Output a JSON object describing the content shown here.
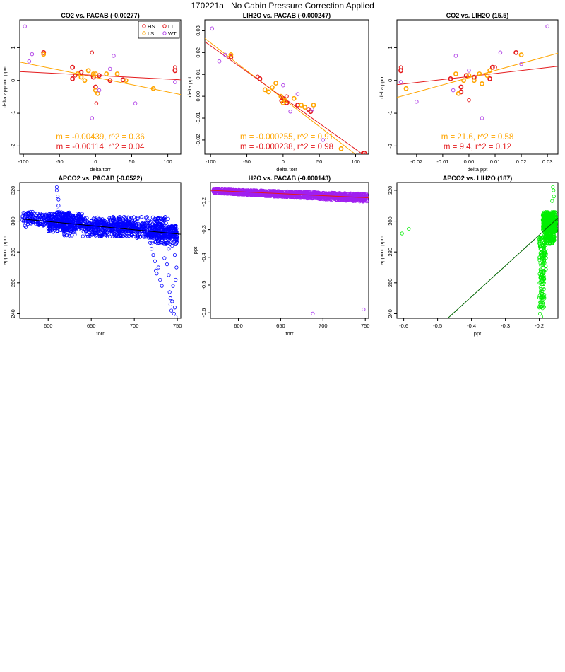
{
  "page": {
    "title": "170221a   No Cabin Pressure Correction Applied"
  },
  "colors": {
    "HS": "#e41a1c",
    "LS": "#ffa500",
    "LT": "#e41a1c",
    "WT": "#b44be8",
    "blue": "#0000ff",
    "purple": "#a020f0",
    "green": "#00ee00",
    "darkgreen": "#006400"
  },
  "chart_data": [
    {
      "id": "p1",
      "type": "scatter",
      "title": "CO2 vs. PACAB (-0.00277)",
      "xlabel": "delta torr",
      "ylabel": "delta approx. ppm",
      "xlim": [
        -105,
        118
      ],
      "ylim": [
        -2.25,
        1.85
      ],
      "xticks": [
        -100,
        -50,
        0,
        50,
        100
      ],
      "yticks": [
        -2,
        -1,
        0,
        1
      ],
      "legend": {
        "placement": "top-right",
        "entries": [
          {
            "label": "HS",
            "color": "#e41a1c"
          },
          {
            "label": "LT",
            "color": "#e41a1c"
          },
          {
            "label": "LS",
            "color": "#ffa500"
          },
          {
            "label": "WT",
            "color": "#b44be8"
          }
        ]
      },
      "annotations": [
        {
          "text": "m = -0.00439, r^2 = 0.36",
          "color": "#ffa500"
        },
        {
          "text": "m = -0.00114, r^2 = 0.04",
          "color": "#e41a1c"
        }
      ],
      "lines": [
        {
          "color": "#ffa500",
          "x": [
            -105,
            118
          ],
          "y": [
            0.56,
            -0.43
          ]
        },
        {
          "color": "#e41a1c",
          "x": [
            -105,
            118
          ],
          "y": [
            0.27,
            0.02
          ]
        }
      ],
      "series": [
        {
          "name": "HS",
          "color": "#e41a1c",
          "lw": 1.6,
          "r": 2.6,
          "points": [
            [
              -72,
              0.85
            ],
            [
              -32,
              0.4
            ],
            [
              -32,
              0.05
            ],
            [
              -20,
              0.25
            ],
            [
              0,
              -0.2
            ],
            [
              5,
              0.15
            ],
            [
              -3,
              0.1
            ],
            [
              20,
              0.0
            ],
            [
              38,
              0.02
            ],
            [
              110,
              0.3
            ]
          ]
        },
        {
          "name": "LS",
          "color": "#ffa500",
          "lw": 1.6,
          "r": 2.6,
          "points": [
            [
              -72,
              0.8
            ],
            [
              -25,
              0.2
            ],
            [
              -10,
              0.3
            ],
            [
              -3,
              0.2
            ],
            [
              0,
              -0.3
            ],
            [
              0,
              0.2
            ],
            [
              3,
              -0.4
            ],
            [
              15,
              0.2
            ],
            [
              -15,
              0.0
            ],
            [
              30,
              0.2
            ],
            [
              42,
              0.0
            ],
            [
              80,
              -0.25
            ],
            [
              -20,
              0.1
            ]
          ]
        },
        {
          "name": "LT",
          "color": "#e41a1c",
          "lw": 1.0,
          "r": 2.3,
          "points": [
            [
              -5,
              0.85
            ],
            [
              1,
              -0.7
            ],
            [
              110,
              0.4
            ],
            [
              -28,
              0.15
            ]
          ]
        },
        {
          "name": "WT",
          "color": "#b44be8",
          "lw": 1.0,
          "r": 2.3,
          "points": [
            [
              -98,
              1.65
            ],
            [
              -88,
              0.8
            ],
            [
              -92,
              0.58
            ],
            [
              -5,
              -1.15
            ],
            [
              55,
              -0.7
            ],
            [
              20,
              0.35
            ],
            [
              110,
              -0.05
            ],
            [
              25,
              0.75
            ],
            [
              5,
              -0.3
            ]
          ]
        }
      ]
    },
    {
      "id": "p2",
      "type": "scatter",
      "title": "LIH2O vs. PACAB (-0.000247)",
      "xlabel": "delta torr",
      "ylabel": "delta ppt",
      "xlim": [
        -108,
        118
      ],
      "ylim": [
        -0.0265,
        0.035
      ],
      "xticks": [
        -100,
        -50,
        0,
        50,
        100
      ],
      "yticks": [
        -0.02,
        -0.01,
        0.0,
        0.01,
        0.02,
        0.03
      ],
      "annotations": [
        {
          "text": "m = -0.000255, r^2 = 0.91",
          "color": "#ffa500"
        },
        {
          "text": "m = -0.000238, r^2 = 0.98",
          "color": "#e41a1c"
        }
      ],
      "lines": [
        {
          "color": "#ffa500",
          "x": [
            -108,
            118
          ],
          "y": [
            0.0265,
            -0.0312
          ]
        },
        {
          "color": "#e41a1c",
          "x": [
            -108,
            118
          ],
          "y": [
            0.025,
            -0.0285
          ]
        }
      ],
      "series": [
        {
          "name": "HS",
          "color": "#e41a1c",
          "lw": 1.6,
          "r": 2.6,
          "points": [
            [
              -72,
              0.018
            ],
            [
              -32,
              0.008
            ],
            [
              -2,
              -0.002
            ],
            [
              0,
              -0.001
            ],
            [
              5,
              -0.003
            ],
            [
              20,
              -0.004
            ],
            [
              38,
              -0.007
            ],
            [
              112,
              -0.026
            ],
            [
              35,
              -0.006
            ]
          ]
        },
        {
          "name": "LS",
          "color": "#ffa500",
          "lw": 1.6,
          "r": 2.6,
          "points": [
            [
              -72,
              0.019
            ],
            [
              -25,
              0.003
            ],
            [
              -20,
              0.002
            ],
            [
              -10,
              0.006
            ],
            [
              -3,
              0.0
            ],
            [
              0,
              -0.003
            ],
            [
              3,
              -0.002
            ],
            [
              15,
              -0.001
            ],
            [
              25,
              -0.004
            ],
            [
              30,
              -0.005
            ],
            [
              42,
              -0.004
            ],
            [
              80,
              -0.024
            ],
            [
              -15,
              0.004
            ]
          ]
        },
        {
          "name": "LT",
          "color": "#e41a1c",
          "lw": 1.0,
          "r": 2.3,
          "points": [
            [
              -35,
              0.009
            ],
            [
              110,
              -0.026
            ],
            [
              5,
              0.0
            ]
          ]
        },
        {
          "name": "WT",
          "color": "#b44be8",
          "lw": 1.0,
          "r": 2.3,
          "points": [
            [
              -98,
              0.031
            ],
            [
              -88,
              0.016
            ],
            [
              -80,
              0.019
            ],
            [
              10,
              -0.007
            ],
            [
              55,
              -0.02
            ],
            [
              20,
              0.001
            ],
            [
              40,
              -0.006
            ],
            [
              0,
              0.005
            ]
          ]
        }
      ]
    },
    {
      "id": "p3",
      "type": "scatter",
      "title": "CO2 vs. LIH2O (15.5)",
      "xlabel": "delta ppt",
      "ylabel": "delta ppm",
      "xlim": [
        -0.0275,
        0.034
      ],
      "ylim": [
        -2.25,
        1.85
      ],
      "xticks": [
        -0.02,
        -0.01,
        0.0,
        0.01,
        0.02,
        0.03
      ],
      "yticks": [
        -2,
        -1,
        0,
        1
      ],
      "annotations": [
        {
          "text": "m = 21.6, r^2 = 0.58",
          "color": "#ffa500"
        },
        {
          "text": "m = 9.4, r^2 = 0.12",
          "color": "#e41a1c"
        }
      ],
      "lines": [
        {
          "color": "#ffa500",
          "x": [
            -0.0275,
            0.034
          ],
          "y": [
            -0.52,
            0.83
          ]
        },
        {
          "color": "#e41a1c",
          "x": [
            -0.0275,
            0.034
          ],
          "y": [
            -0.13,
            0.43
          ]
        }
      ],
      "series": [
        {
          "name": "HS",
          "color": "#e41a1c",
          "lw": 1.6,
          "r": 2.6,
          "points": [
            [
              -0.026,
              0.3
            ],
            [
              -0.007,
              0.05
            ],
            [
              -0.003,
              -0.2
            ],
            [
              -0.001,
              0.15
            ],
            [
              0.002,
              0.1
            ],
            [
              0.008,
              0.05
            ],
            [
              0.009,
              0.4
            ],
            [
              0.018,
              0.85
            ],
            [
              -0.003,
              -0.35
            ]
          ]
        },
        {
          "name": "LS",
          "color": "#ffa500",
          "lw": 1.6,
          "r": 2.6,
          "points": [
            [
              -0.024,
              -0.25
            ],
            [
              -0.004,
              -0.4
            ],
            [
              -0.002,
              0.0
            ],
            [
              0.0,
              0.15
            ],
            [
              0.004,
              0.2
            ],
            [
              0.005,
              -0.1
            ],
            [
              0.007,
              0.15
            ],
            [
              0.008,
              0.3
            ],
            [
              0.02,
              0.78
            ],
            [
              -0.005,
              0.2
            ],
            [
              0.002,
              0.0
            ]
          ]
        },
        {
          "name": "LT",
          "color": "#e41a1c",
          "lw": 1.0,
          "r": 2.3,
          "points": [
            [
              -0.026,
              0.4
            ],
            [
              0.0,
              -0.6
            ],
            [
              0.01,
              0.4
            ]
          ]
        },
        {
          "name": "WT",
          "color": "#b44be8",
          "lw": 1.0,
          "r": 2.3,
          "points": [
            [
              -0.026,
              -0.05
            ],
            [
              -0.02,
              -0.65
            ],
            [
              0.03,
              1.65
            ],
            [
              0.005,
              -1.15
            ],
            [
              -0.005,
              0.75
            ],
            [
              0.012,
              0.85
            ],
            [
              0.02,
              0.5
            ],
            [
              -0.006,
              -0.3
            ],
            [
              0.0,
              0.3
            ]
          ]
        }
      ]
    },
    {
      "id": "p4",
      "type": "scatter",
      "title": "APCO2 vs. PACAB (-0.0522)",
      "xlabel": "torr",
      "ylabel": "approx. ppm",
      "xlim": [
        567,
        754
      ],
      "ylim": [
        237,
        325
      ],
      "xticks": [
        600,
        650,
        700,
        750
      ],
      "yticks": [
        240,
        260,
        280,
        300,
        320
      ],
      "series_color": "#0000ff",
      "line_color": "#000000",
      "lines": [
        {
          "color": "#000000",
          "x": [
            567,
            754
          ],
          "y": [
            301.5,
            291.5
          ]
        }
      ],
      "clusters": [
        {
          "x": [
            570,
            585
          ],
          "y": [
            298,
            306
          ],
          "n": 60
        },
        {
          "x": [
            585,
            640
          ],
          "y": [
            297,
            305
          ],
          "n": 260
        },
        {
          "x": [
            600,
            740
          ],
          "y": [
            296,
            303
          ],
          "n": 320
        },
        {
          "x": [
            640,
            700
          ],
          "y": [
            290,
            300
          ],
          "n": 240
        },
        {
          "x": [
            600,
            700
          ],
          "y": [
            293,
            298
          ],
          "n": 200
        },
        {
          "x": [
            700,
            750
          ],
          "y": [
            289,
            297
          ],
          "n": 260
        },
        {
          "x": [
            608,
            625
          ],
          "y": [
            300,
            306
          ],
          "n": 40
        },
        {
          "x": [
            718,
            750
          ],
          "y": [
            285,
            295
          ],
          "n": 120
        },
        {
          "x": [
            618,
            632
          ],
          "y": [
            290,
            296
          ],
          "n": 30
        }
      ],
      "outliers": [
        [
          610,
          322
        ],
        [
          610,
          320
        ],
        [
          611,
          316
        ],
        [
          612,
          314
        ],
        [
          612,
          310
        ],
        [
          611,
          307
        ],
        [
          573,
          297
        ],
        [
          574,
          296
        ],
        [
          720,
          282
        ],
        [
          722,
          278
        ],
        [
          724,
          274
        ],
        [
          725,
          268
        ],
        [
          726,
          266
        ],
        [
          728,
          270
        ],
        [
          730,
          262
        ],
        [
          732,
          258
        ],
        [
          735,
          276
        ],
        [
          738,
          272
        ],
        [
          740,
          265
        ],
        [
          741,
          254
        ],
        [
          742,
          250
        ],
        [
          742,
          246
        ],
        [
          743,
          242
        ],
        [
          744,
          248
        ],
        [
          745,
          258
        ],
        [
          746,
          240
        ],
        [
          747,
          244
        ],
        [
          748,
          238
        ],
        [
          748,
          262
        ],
        [
          749,
          270
        ],
        [
          740,
          282
        ],
        [
          744,
          284
        ],
        [
          747,
          278
        ],
        [
          749,
          286
        ],
        [
          736,
          286
        ],
        [
          729,
          288
        ],
        [
          733,
          290
        ],
        [
          745,
          292
        ]
      ]
    },
    {
      "id": "p5",
      "type": "scatter",
      "title": "H2O vs. PACAB (-0.000143)",
      "xlabel": "torr",
      "ylabel": "ppt",
      "xlim": [
        567,
        754
      ],
      "ylim": [
        -0.62,
        -0.13
      ],
      "xticks": [
        600,
        650,
        700,
        750
      ],
      "yticks": [
        -0.6,
        -0.5,
        -0.4,
        -0.3,
        -0.2
      ],
      "series_color": "#a020f0",
      "line_color": "#e41a1c",
      "lines": [
        {
          "color": "#e41a1c",
          "x": [
            567,
            754
          ],
          "y": [
            -0.158,
            -0.185
          ]
        }
      ],
      "bands": [
        {
          "x": [
            570,
            752
          ],
          "y0": [
            -0.153,
            -0.17
          ],
          "y1": [
            -0.168,
            -0.2
          ],
          "n": 1600
        }
      ],
      "outliers": [
        [
          688,
          -0.603
        ],
        [
          748,
          -0.588
        ]
      ]
    },
    {
      "id": "p6",
      "type": "scatter",
      "title": "APCO2 vs. LIH2O (187)",
      "xlabel": "ppt",
      "ylabel": "approx. ppm",
      "xlim": [
        -0.62,
        -0.145
      ],
      "ylim": [
        237,
        325
      ],
      "xticks": [
        -0.6,
        -0.5,
        -0.4,
        -0.3,
        -0.2
      ],
      "yticks": [
        240,
        260,
        280,
        300,
        320
      ],
      "series_color": "#00ee00",
      "line_color": "#006400",
      "lines": [
        {
          "color": "#006400",
          "x": [
            -0.47,
            -0.145
          ],
          "y": [
            237,
            302
          ]
        }
      ],
      "clusters": [
        {
          "x": [
            -0.19,
            -0.15
          ],
          "y": [
            293,
            306
          ],
          "n": 420
        },
        {
          "x": [
            -0.185,
            -0.155
          ],
          "y": [
            285,
            297
          ],
          "n": 160
        },
        {
          "x": [
            -0.2,
            -0.18
          ],
          "y": [
            265,
            290
          ],
          "n": 90
        },
        {
          "x": [
            -0.2,
            -0.185
          ],
          "y": [
            243,
            268
          ],
          "n": 70
        }
      ],
      "outliers": [
        [
          -0.605,
          292
        ],
        [
          -0.585,
          295
        ],
        [
          -0.16,
          322
        ],
        [
          -0.158,
          320
        ],
        [
          -0.157,
          316
        ],
        [
          -0.162,
          313
        ],
        [
          -0.198,
          240
        ],
        [
          -0.2,
          244
        ],
        [
          -0.194,
          238
        ]
      ]
    }
  ]
}
